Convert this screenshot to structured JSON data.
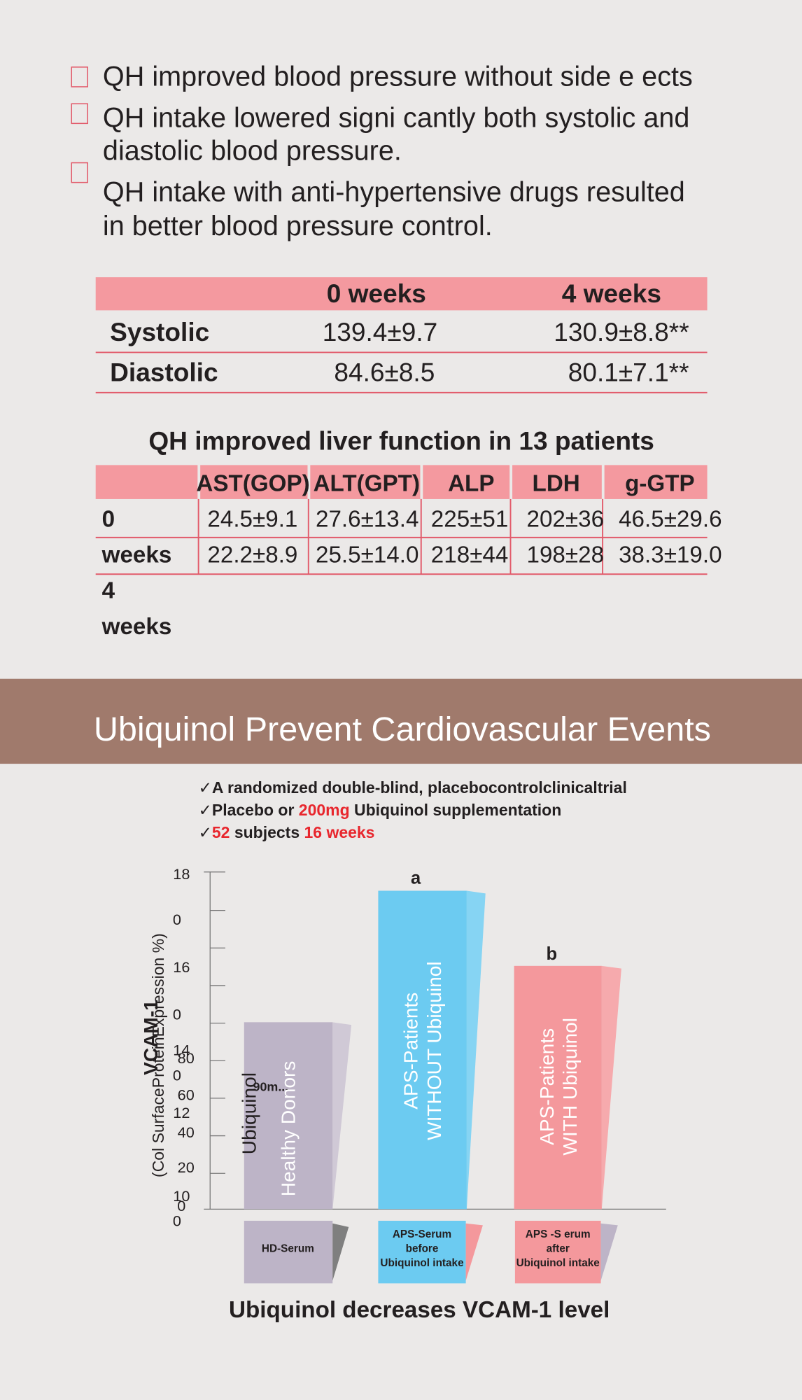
{
  "bullets": [
    {
      "lines": [
        "QH improved blood pressure without side e ects"
      ]
    },
    {
      "lines": [
        "QH intake lowered signi cantly both systolic and",
        "diastolic blood pressure."
      ]
    },
    {
      "lines": [
        "QH intake with anti-hypertensive drugs resulted",
        "in better blood pressure control."
      ]
    }
  ],
  "bp_table": {
    "columns": [
      "0 weeks",
      "4 weeks"
    ],
    "rows": [
      {
        "label": "Systolic",
        "cells": [
          "139.4±9.7",
          "130.9±8.8**"
        ]
      },
      {
        "label": "Diastolic",
        "cells": [
          "84.6±8.5",
          "80.1±7.1**"
        ]
      }
    ]
  },
  "liver_table": {
    "title": "QH improved liver function in 13 patients",
    "columns": [
      "AST(GOP)",
      "ALT(GPT)",
      "ALP",
      "LDH",
      "g-GTP"
    ],
    "row_label_lines": [
      "0",
      "weeks",
      "4",
      "weeks"
    ],
    "rows": [
      [
        "24.5±9.1",
        "27.6±13.4",
        "225±51",
        "202±36",
        "46.5±29.6"
      ],
      [
        "22.2±8.9",
        "25.5±14.0",
        "218±44",
        "198±28",
        "38.3±19.0"
      ]
    ]
  },
  "banner": {
    "title": "Ubiquinol Prevent Cardiovascular Events"
  },
  "checklist": [
    [
      {
        "text": "✓A randomized double-blind, placebocontrolclinicaltrial"
      }
    ],
    [
      {
        "text": "✓Placebo or "
      },
      {
        "text": "200mg",
        "highlight": true
      },
      {
        "text": " Ubiquinol supplementation"
      }
    ],
    [
      {
        "text": "✓"
      },
      {
        "text": "52",
        "highlight": true
      },
      {
        "text": " subjects "
      },
      {
        "text": "16 weeks",
        "highlight": true
      }
    ]
  ],
  "chart": {
    "y_title": "VCAM-1",
    "y_subtitle": "(Col SurfaceProteinExpression %)",
    "axis_labels": [
      "18",
      "0",
      "16",
      "0",
      "14",
      "0",
      "12",
      "10",
      "0",
      "80",
      "60",
      "40",
      "20",
      "0"
    ],
    "overlay_labels": [
      "Ubiquinol",
      "90m..."
    ],
    "bars": [
      {
        "lines": [
          "Healthy Donors"
        ],
        "box": [
          "HD-Serum"
        ]
      },
      {
        "letter": "a",
        "lines": [
          "APS-Patients",
          "WITHOUT Ubiquinol"
        ],
        "box": [
          "APS-Serum",
          "before",
          "Ubiquinol intake"
        ]
      },
      {
        "letter": "b",
        "lines": [
          "APS-Patients",
          "WITH Ubiquinol"
        ],
        "box": [
          "APS -S erum",
          "after",
          "Ubiquinol intake"
        ]
      }
    ],
    "caption": "Ubiquinol decreases VCAM-1 level"
  }
}
